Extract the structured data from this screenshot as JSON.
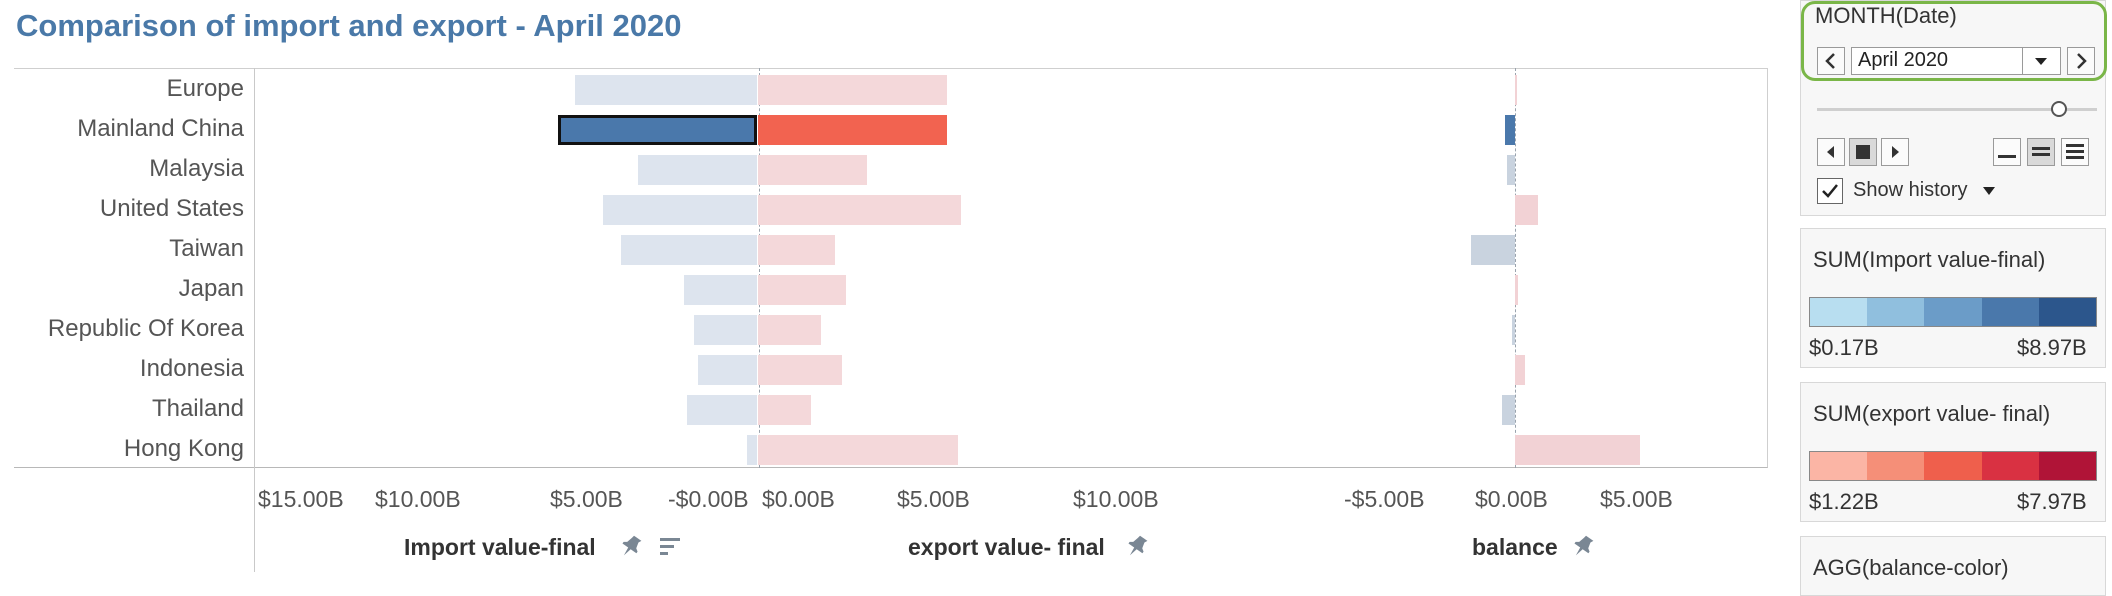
{
  "title": "Comparison of import and export - April 2020",
  "rows": [
    {
      "label": "Europe",
      "import": 5.2,
      "export": 5.4,
      "balance": 0.0
    },
    {
      "label": "Mainland China",
      "import": 5.7,
      "export": 5.4,
      "balance": -0.4
    },
    {
      "label": "Malaysia",
      "import": 3.4,
      "export": 3.1,
      "balance": -0.3
    },
    {
      "label": "United States",
      "import": 4.4,
      "export": 5.8,
      "balance": 0.9
    },
    {
      "label": "Taiwan",
      "import": 3.9,
      "export": 2.2,
      "balance": -1.7
    },
    {
      "label": "Japan",
      "import": 2.1,
      "export": 2.5,
      "balance": 0.1
    },
    {
      "label": "Republic Of Korea",
      "import": 1.8,
      "export": 1.8,
      "balance": -0.1
    },
    {
      "label": "Indonesia",
      "import": 1.7,
      "export": 2.4,
      "balance": 0.4
    },
    {
      "label": "Thailand",
      "import": 2.0,
      "export": 1.5,
      "balance": -0.5
    },
    {
      "label": "Hong Kong",
      "import": 0.3,
      "export": 5.7,
      "balance": 4.8
    }
  ],
  "selected_row": "Mainland China",
  "axes": {
    "import": {
      "title": "Import value-final",
      "ticks": [
        "$15.00B",
        "$10.00B",
        "$5.00B",
        "-$0.00B"
      ]
    },
    "export": {
      "title": "export value- final",
      "ticks": [
        "$0.00B",
        "$5.00B",
        "$10.00B"
      ]
    },
    "balance": {
      "title": "balance",
      "ticks": [
        "-$5.00B",
        "$0.00B",
        "$5.00B"
      ]
    }
  },
  "filter": {
    "title": "MONTH(Date)",
    "value": "April 2020",
    "show_history": "Show history",
    "show_history_checked": true
  },
  "legends": [
    {
      "title": "SUM(Import value-final)",
      "min": "$0.17B",
      "max": "$8.97B",
      "colors": [
        "#b8def0",
        "#90bfde",
        "#6b9cc8",
        "#4a78ab",
        "#2c568c"
      ]
    },
    {
      "title": "SUM(export value- final)",
      "min": "$1.22B",
      "max": "$7.97B",
      "colors": [
        "#fbb5a5",
        "#f58f78",
        "#ef5f4c",
        "#d93142",
        "#b01437"
      ]
    },
    {
      "title": "AGG(balance-color)"
    }
  ],
  "colors": {
    "import_light": "#dde4ee",
    "import_selected": "#4a78ab",
    "export_light": "#f4d8da",
    "export_selected": "#f26350",
    "balance_neg": "#c9d3df",
    "balance_neg_selected": "#4a78ab",
    "balance_pos": "#f2d2d5",
    "highlight_outline": "#7ab648"
  }
}
